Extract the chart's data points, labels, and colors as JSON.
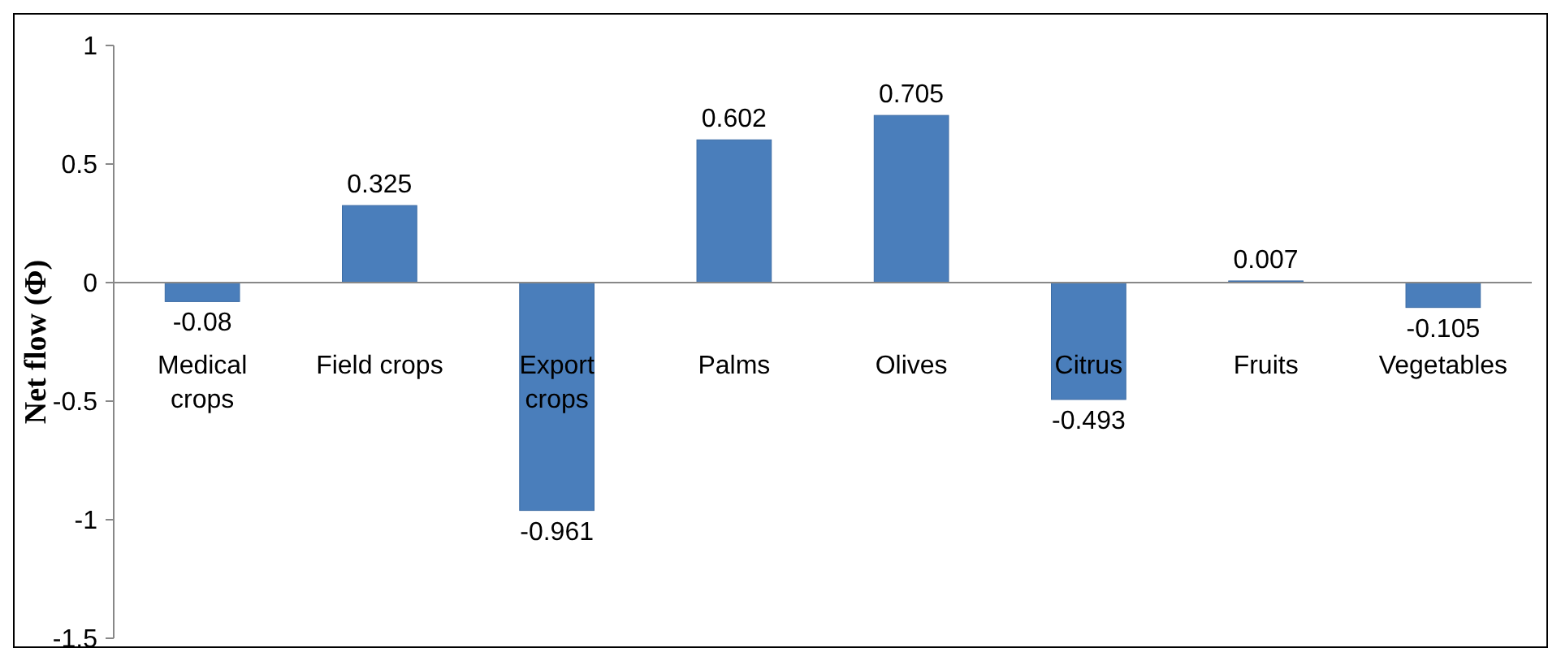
{
  "chart_data": {
    "type": "bar",
    "ylabel": "Net flow (Φ)",
    "categories": [
      "Medical crops",
      "Field crops",
      "Export crops",
      "Palms",
      "Olives",
      "Citrus",
      "Fruits",
      "Vegetables"
    ],
    "values": [
      -0.08,
      0.325,
      -0.961,
      0.602,
      0.705,
      -0.493,
      0.007,
      -0.105
    ],
    "color": "#4a7ebb",
    "ylim": [
      -1.5,
      1
    ],
    "yticks": [
      -1.5,
      -1,
      -0.5,
      0,
      0.5,
      1
    ],
    "data_labels": true
  }
}
